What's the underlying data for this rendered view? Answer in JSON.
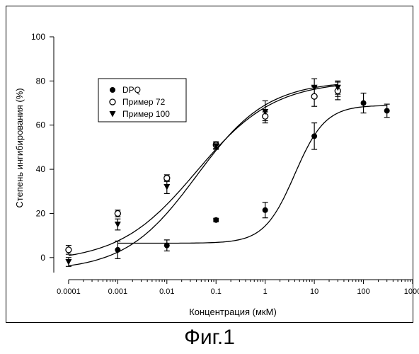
{
  "caption": "Фиг.1",
  "chart_data": {
    "type": "scatter",
    "title": "",
    "xlabel": "Концентрация (мкМ)",
    "ylabel": "Степень ингибирования (%)",
    "xscale": "log",
    "xlim": [
      5e-05,
      1000
    ],
    "ylim": [
      -10,
      100
    ],
    "xticks": [
      0.0001,
      0.001,
      0.01,
      0.1,
      1,
      10,
      100,
      1000
    ],
    "xtick_labels": [
      "0.0001",
      "0.001",
      "0.01",
      "0.1",
      "1",
      "10",
      "100",
      "1000"
    ],
    "yticks": [
      0,
      20,
      40,
      60,
      80,
      100
    ],
    "ytick_labels": [
      "0",
      "20",
      "40",
      "60",
      "80",
      "100"
    ],
    "legend_position": "top-left",
    "grid": false,
    "series": [
      {
        "name": "DPQ",
        "marker": "filled-circle",
        "x": [
          0.001,
          0.01,
          0.1,
          1,
          10,
          30,
          100,
          300
        ],
        "y": [
          3.5,
          5.5,
          17,
          21.5,
          55,
          75.5,
          70,
          66.5
        ],
        "err": [
          4,
          2.5,
          0.8,
          3.5,
          6,
          4,
          4.5,
          3
        ],
        "fit": {
          "bottom": 6.5,
          "top": 69,
          "ec50": 4,
          "hill": 1.4
        }
      },
      {
        "name": "Пример 72",
        "marker": "open-circle",
        "x": [
          0.0001,
          0.001,
          0.01,
          0.1,
          1,
          10,
          30
        ],
        "y": [
          3.5,
          20,
          36,
          51,
          64,
          73,
          75.5
        ],
        "err": [
          2,
          1.5,
          1.5,
          1.5,
          2,
          4.5,
          2.5
        ],
        "fit": {
          "bottom": -2,
          "top": 80,
          "ec50": 0.04,
          "hill": 0.55
        }
      },
      {
        "name": "Пример 100",
        "marker": "filled-triangle-down",
        "x": [
          0.0001,
          0.001,
          0.01,
          0.1,
          1,
          10,
          30
        ],
        "y": [
          -2,
          15,
          32,
          50.5,
          66,
          77,
          77
        ],
        "err": [
          2,
          2.5,
          3,
          1.5,
          5,
          4,
          3
        ],
        "fit": {
          "bottom": -6,
          "top": 80,
          "ec50": 0.04,
          "hill": 0.6
        }
      }
    ]
  }
}
